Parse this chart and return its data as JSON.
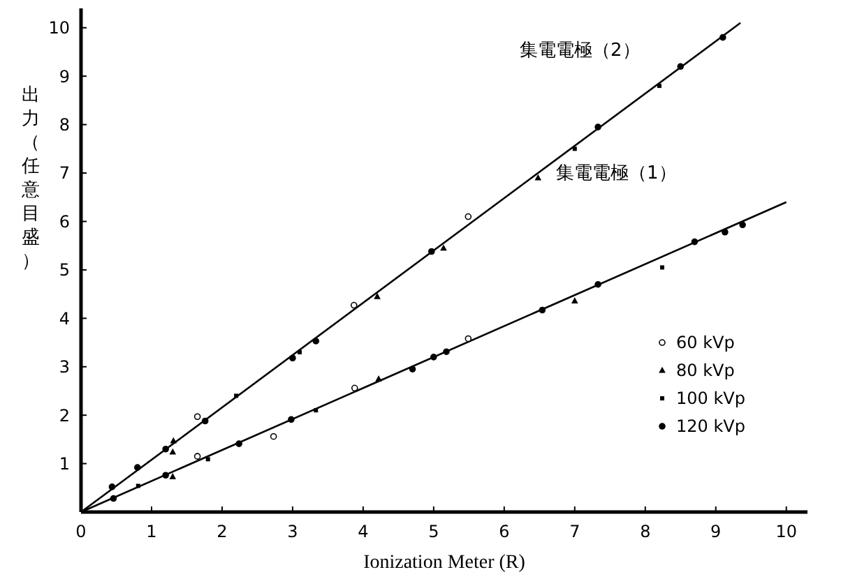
{
  "chart_data": {
    "type": "scatter",
    "xlabel": "Ionization Meter (R)",
    "ylabel": "出力（任意目盛）",
    "xlim": [
      0,
      10.3
    ],
    "ylim": [
      0,
      10.4
    ],
    "xticks": [
      0,
      1,
      2,
      3,
      4,
      5,
      6,
      7,
      8,
      9,
      10
    ],
    "yticks": [
      1,
      2,
      3,
      4,
      5,
      6,
      7,
      8,
      9,
      10
    ],
    "grid": false,
    "legend": "right",
    "annotations": [
      "集電電極（2）",
      "集電電極（1）"
    ],
    "series": [
      {
        "type": "line",
        "color": "#000000",
        "x": [
          0,
          9.35
        ],
        "values": [
          0,
          10.1
        ],
        "line_style": "solid"
      },
      {
        "type": "line",
        "color": "#000000",
        "x": [
          0,
          10.0
        ],
        "values": [
          0,
          6.4
        ],
        "line_style": "solid"
      },
      {
        "name": "60 kVp",
        "marker": "circle",
        "color": "#ffffff",
        "x": [
          1.65,
          5.49,
          1.65,
          2.73,
          3.88,
          5.49,
          3.87
        ],
        "values": [
          1.97,
          6.1,
          1.15,
          1.56,
          2.56,
          3.58,
          4.27
        ]
      },
      {
        "name": "80 kVp",
        "marker": "triangle",
        "color": "#000000",
        "x": [
          1.31,
          1.3,
          4.2,
          6.48,
          1.3,
          4.22,
          7.0,
          5.14
        ],
        "values": [
          1.47,
          1.24,
          4.45,
          6.9,
          0.73,
          2.75,
          4.36,
          5.45
        ]
      },
      {
        "name": "100 kVp",
        "marker": "square",
        "color": "#000000",
        "x": [
          8.24,
          2.2,
          3.33,
          7.0,
          3.1,
          1.8,
          8.2,
          0.81
        ],
        "values": [
          5.05,
          2.4,
          2.1,
          7.5,
          3.3,
          1.09,
          8.8,
          0.54
        ]
      },
      {
        "name": "120 kVp",
        "marker": "circle",
        "color": "#000000",
        "x": [
          0.44,
          0.8,
          1.2,
          1.76,
          3.0,
          3.33,
          4.97,
          7.33,
          8.5,
          9.1,
          0.46,
          1.2,
          2.24,
          2.98,
          4.7,
          5.0,
          5.18,
          6.54,
          7.33,
          8.7,
          9.13,
          9.38
        ],
        "values": [
          0.52,
          0.92,
          1.3,
          1.88,
          3.18,
          3.53,
          5.38,
          7.95,
          9.2,
          9.8,
          0.28,
          0.76,
          1.41,
          1.91,
          2.95,
          3.2,
          3.31,
          4.17,
          4.7,
          5.58,
          5.78,
          5.93
        ]
      }
    ]
  }
}
